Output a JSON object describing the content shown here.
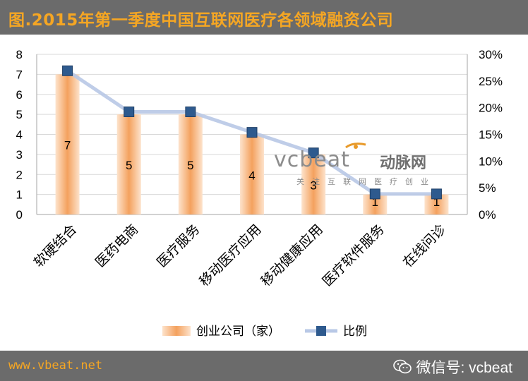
{
  "header": {
    "title": "图.2015年第一季度中国互联网医疗各领域融资公司"
  },
  "footer": {
    "site_url": "www.vbeat.net",
    "wechat_label": "微信号: vcbeat"
  },
  "watermark": {
    "main": "vcbeat",
    "brand": "动脉网",
    "slogan": "关注互联网医疗创业"
  },
  "chart_data": {
    "type": "bar",
    "title": "",
    "categories": [
      "软硬结合",
      "医药电商",
      "医疗服务",
      "移动医疗应用",
      "移动健康应用",
      "医疗软件服务",
      "在线问诊"
    ],
    "series": [
      {
        "name": "创业公司（家）",
        "type": "bar",
        "axis": "left",
        "values": [
          7,
          5,
          5,
          4,
          3,
          1,
          1
        ]
      },
      {
        "name": "比例",
        "type": "line",
        "axis": "right",
        "values": [
          0.2692,
          0.1923,
          0.1923,
          0.1538,
          0.1154,
          0.0385,
          0.0385
        ]
      }
    ],
    "y_left": {
      "min": 0,
      "max": 8,
      "ticks": [
        "0",
        "1",
        "2",
        "3",
        "4",
        "5",
        "6",
        "7",
        "8"
      ]
    },
    "y_right": {
      "min": 0,
      "max": 0.3,
      "ticks": [
        "0%",
        "5%",
        "10%",
        "15%",
        "20%",
        "25%",
        "30%"
      ]
    },
    "data_labels": [
      "7",
      "5",
      "5",
      "4",
      "3",
      "1",
      "1"
    ],
    "grid": "horizontal",
    "legend": "bottom-center",
    "colors": {
      "bar": "#f4a15e",
      "bar_light": "#fde3cc",
      "line": "#b8c8e6",
      "marker": "#2e5a8e"
    }
  }
}
